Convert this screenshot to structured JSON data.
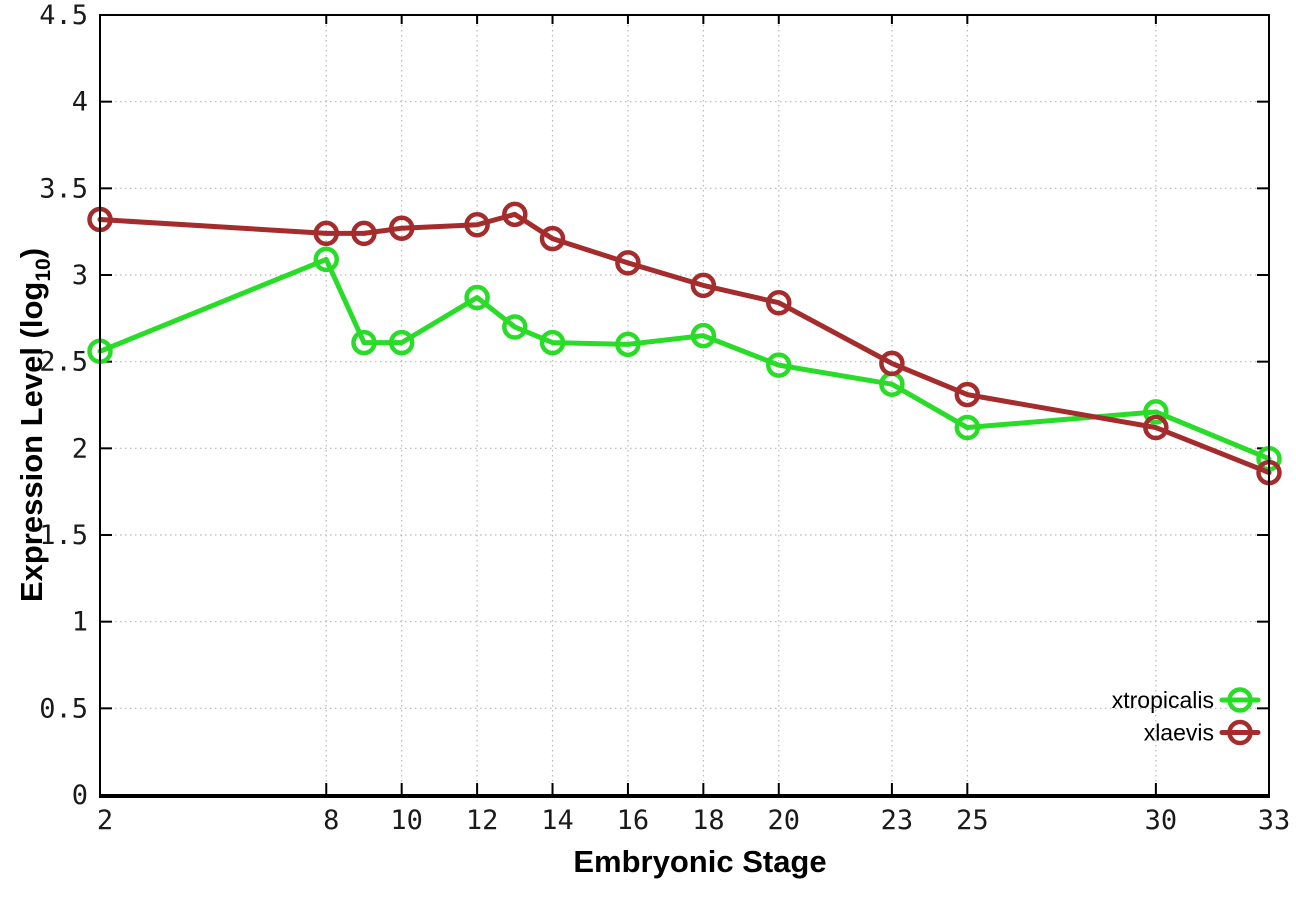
{
  "figure": {
    "background": "#ffffff",
    "axis_color": "#000000",
    "grid_color": "#b8b8b8"
  },
  "chart_data": {
    "type": "line",
    "title": "",
    "xlabel": "Embryonic Stage",
    "ylabel": "Expression Level (log10)",
    "ylabel_parts": {
      "main": "Expression Level (log",
      "sub": "10",
      "close": ")"
    },
    "xlim": [
      2,
      33
    ],
    "ylim": [
      0,
      4.5
    ],
    "grid": true,
    "legend_position": "bottom-right",
    "xticks": [
      2,
      8,
      10,
      12,
      14,
      16,
      18,
      20,
      23,
      25,
      30,
      33
    ],
    "yticks": [
      0,
      0.5,
      1,
      1.5,
      2,
      2.5,
      3,
      3.5,
      4,
      4.5
    ],
    "ytick_labels": [
      "0",
      "0.5",
      "1",
      "1.5",
      "2",
      "2.5",
      "3",
      "3.5",
      "4",
      "4.5"
    ],
    "x": [
      2,
      8,
      9,
      10,
      12,
      13,
      14,
      16,
      18,
      20,
      23,
      25,
      30,
      33
    ],
    "series": [
      {
        "name": "xtropicalis",
        "color": "#28dc28",
        "values": [
          2.56,
          3.09,
          2.61,
          2.61,
          2.87,
          2.7,
          2.61,
          2.6,
          2.65,
          2.48,
          2.37,
          2.12,
          2.21,
          1.94
        ]
      },
      {
        "name": "xlaevis",
        "color": "#a42c2c",
        "values": [
          3.32,
          3.24,
          3.24,
          3.27,
          3.29,
          3.35,
          3.21,
          3.07,
          2.94,
          2.84,
          2.49,
          2.31,
          2.12,
          1.86
        ]
      }
    ]
  }
}
